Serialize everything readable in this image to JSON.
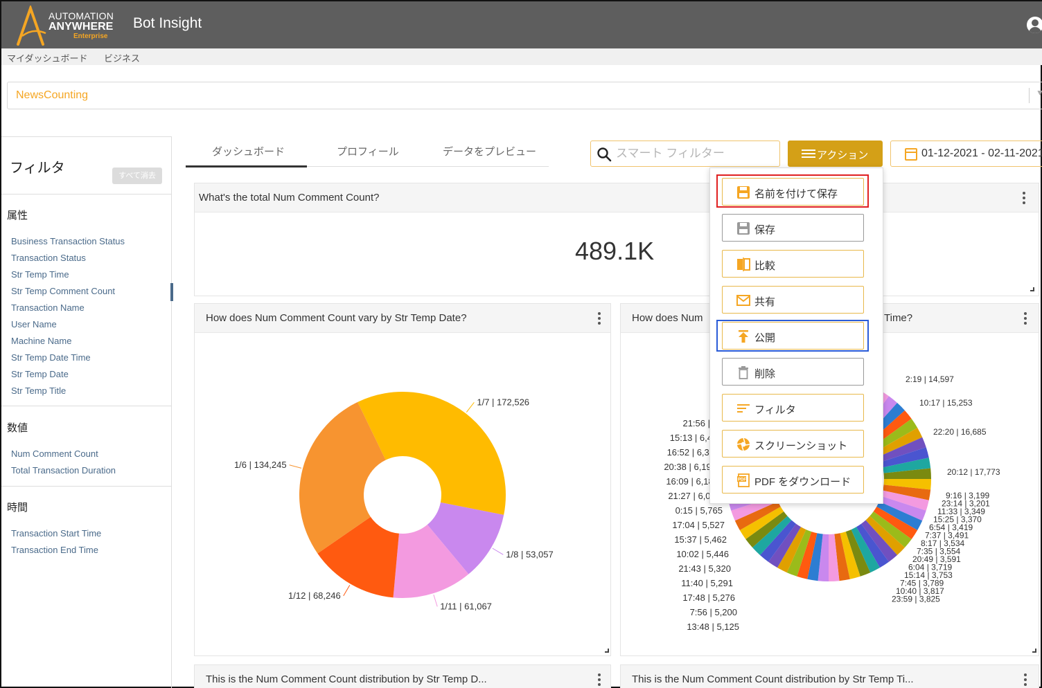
{
  "header": {
    "brand_line1": "AUTOMATION",
    "brand_line2": "ANYWHERE",
    "brand_line3": "Enterprise",
    "app_title": "Bot Insight",
    "brand_color": "#f5a623",
    "topbar_color": "#5e5e5e",
    "user_icon": "user-icon"
  },
  "breadcrumb": {
    "item1": "マイダッシュボード",
    "item2": "ビジネス"
  },
  "dashboard_select": {
    "value": "NewsCounting"
  },
  "sidebar": {
    "title": "フィルタ",
    "clear_all": "すべて消去",
    "attributes_heading": "属性",
    "attributes": [
      "Business Transaction Status",
      "Transaction Status",
      "Str Temp Time",
      "Str Temp Comment Count",
      "Transaction Name",
      "User Name",
      "Machine Name",
      "Str Temp Date Time",
      "Str Temp Date",
      "Str Temp Title"
    ],
    "numeric_heading": "数値",
    "numeric": [
      "Num Comment Count",
      "Total Transaction Duration"
    ],
    "time_heading": "時間",
    "time": [
      "Transaction Start Time",
      "Transaction End Time"
    ]
  },
  "tabs": [
    {
      "label": "ダッシュボード",
      "active": true
    },
    {
      "label": "プロフィール",
      "active": false
    },
    {
      "label": "データをプレビュー",
      "active": false
    }
  ],
  "toolbar": {
    "search_placeholder": "スマート フィルター",
    "action_label": "アクション",
    "action_color": "#d4a017",
    "date_range": "01-12-2021 - 02-11-2021"
  },
  "action_menu": {
    "items": [
      {
        "label": "名前を付けて保存",
        "icon": "save-as-icon"
      },
      {
        "label": "保存",
        "icon": "save-icon"
      },
      {
        "label": "比較",
        "icon": "compare-icon"
      },
      {
        "label": "共有",
        "icon": "mail-icon"
      },
      {
        "label": "公開",
        "icon": "publish-icon"
      },
      {
        "label": "削除",
        "icon": "trash-icon"
      },
      {
        "label": "フィルタ",
        "icon": "filter-icon"
      },
      {
        "label": "スクリーンショット",
        "icon": "camera-shutter-icon"
      },
      {
        "label": "PDF をダウンロード",
        "icon": "pdf-icon"
      }
    ]
  },
  "cards": {
    "kpi": {
      "title": "What's the total Num Comment Count?",
      "value": "489.1K"
    },
    "date_chart": {
      "title": "How does Num Comment Count vary by Str Temp Date?"
    },
    "time_chart": {
      "title_left": "How does Num",
      "title_right": "Time?"
    },
    "dist_date": {
      "title": "This is the Num Comment Count distribution by Str Temp D..."
    },
    "dist_time": {
      "title": "This is the Num Comment Count distribution by Str Temp Ti..."
    }
  },
  "chart_data": [
    {
      "type": "pie",
      "title": "How does Num Comment Count vary by Str Temp Date?",
      "categories": [
        "1/7",
        "1/8",
        "1/11",
        "1/12",
        "1/6"
      ],
      "values": [
        172526,
        53057,
        61067,
        68246,
        134245
      ],
      "labels": [
        "1/7 | 172,526",
        "1/8 | 53,057",
        "1/11 | 61,067",
        "1/12 | 68,246",
        "1/6 | 134,245"
      ],
      "colors": [
        "#ffbb00",
        "#c988ee",
        "#f39ae0",
        "#ff5a10",
        "#f79430"
      ],
      "donut": true
    },
    {
      "type": "pie",
      "title": "How does Num ... Time?",
      "visible_labels_right": [
        "2:19 | 14,597",
        "10:17 | 15,253",
        "22:20 | 16,685",
        "20:12 | 17,773",
        "9:16 | 3,199",
        "23:14 | 3,201",
        "11:33 | 3,349",
        "15:25 | 3,370",
        "6:54 | 3,419",
        "7:37 | 3,491",
        "8:17 | 3,534",
        "7:35 | 3,554",
        "20:49 | 3,591",
        "6:04 | 3,719",
        "15:14 | 3,753",
        "7:45 | 3,789",
        "10:40 | 3,817",
        "23:59 | 3,825"
      ],
      "visible_labels_left": [
        "21:56 |",
        "15:13 | 6,4",
        "16:52 | 6,38",
        "20:38 | 6,199",
        "16:09 | 6,186",
        "21:27 | 6,053",
        "0:15 | 5,765",
        "17:04 | 5,527",
        "15:37 | 5,462",
        "10:02 | 5,446",
        "21:43 | 5,320",
        "11:40 | 5,291",
        "17:48 | 5,276",
        "7:56 | 5,200",
        "13:48 | 5,125"
      ],
      "donut": true
    }
  ]
}
